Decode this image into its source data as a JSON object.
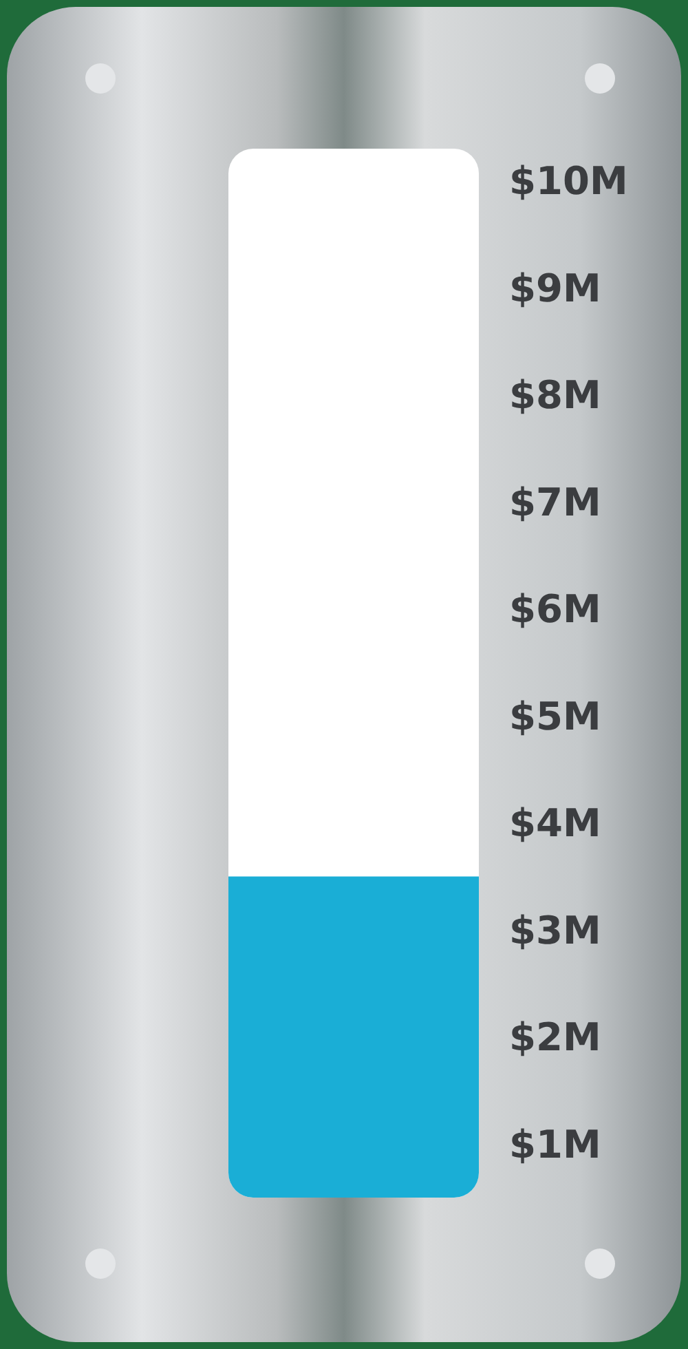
{
  "chart_data": {
    "type": "bar",
    "categories": [
      null
    ],
    "values": [
      3.5
    ],
    "color": "#1aaed6",
    "ylim": [
      0.5,
      10.3
    ],
    "yticks": [
      {
        "value": 1,
        "label": "$1M"
      },
      {
        "value": 2,
        "label": "$2M"
      },
      {
        "value": 3,
        "label": "$3M"
      },
      {
        "value": 4,
        "label": "$4M"
      },
      {
        "value": 5,
        "label": "$5M"
      },
      {
        "value": 6,
        "label": "$6M"
      },
      {
        "value": 7,
        "label": "$7M"
      },
      {
        "value": 8,
        "label": "$8M"
      },
      {
        "value": 9,
        "label": "$9M"
      },
      {
        "value": 10,
        "label": "$10M"
      }
    ],
    "tick_labels": "y",
    "grid": false
  }
}
